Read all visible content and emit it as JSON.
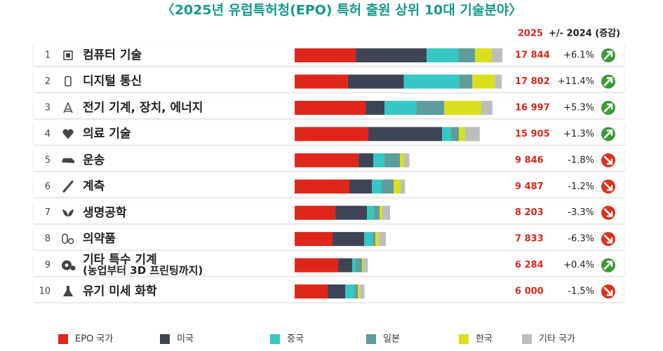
{
  "chart_data": {
    "type": "stacked-bar-table",
    "title": "〈2025년 유럽특허청(EPO) 특허 출원 상위 10대 기술분야〉",
    "header_year": "2025",
    "header_change": "+/- 2024 (증감)",
    "ranks": [
      1,
      2,
      3,
      4,
      5,
      6,
      7,
      8,
      9,
      10
    ],
    "categories": [
      "컴퓨터 기술",
      "디지털 통신",
      "전기 기계, 장치, 에너지",
      "의료 기술",
      "운송",
      "계측",
      "생명공학",
      "의약품",
      "기타 특수 기계\n(농업부터 3D 프린팅까지)",
      "유기 미세 화학"
    ],
    "totals": [
      17844,
      17802,
      16997,
      15905,
      9846,
      9487,
      8203,
      7833,
      6284,
      6000
    ],
    "total_labels": [
      "17 844",
      "17 802",
      "16 997",
      "15 905",
      "9 846",
      "9 487",
      "8 203",
      "7 833",
      "6 284",
      "6 000"
    ],
    "changes": [
      6.1,
      11.4,
      5.3,
      1.3,
      -1.8,
      -1.2,
      -3.3,
      -6.3,
      0.4,
      -1.5
    ],
    "change_labels": [
      "+6.1%",
      "+11.4%",
      "+5.3%",
      "+1.3%",
      "-1.8%",
      "-1.2%",
      "-3.3%",
      "-6.3%",
      "+0.4%",
      "-1.5%"
    ],
    "series": [
      {
        "name": "EPO 국가",
        "color": "#e0261b",
        "values": [
          5250,
          4570,
          6090,
          6330,
          5490,
          4700,
          3500,
          3255,
          3740,
          2835
        ]
      },
      {
        "name": "미국",
        "color": "#3e4453",
        "values": [
          6090,
          4810,
          1630,
          6330,
          1265,
          1930,
          2715,
          2715,
          1205,
          1510
        ]
      },
      {
        "name": "중국",
        "color": "#35c7c1",
        "values": [
          2710,
          4750,
          2770,
          785,
          965,
          845,
          600,
          725,
          300,
          785
        ]
      },
      {
        "name": "일본",
        "color": "#5f9c9c",
        "values": [
          1450,
          1140,
          2350,
          665,
          1325,
          1025,
          480,
          240,
          545,
          300
        ]
      },
      {
        "name": "한국",
        "color": "#d9df1c",
        "values": [
          1440,
          1930,
          3195,
          540,
          360,
          600,
          240,
          300,
          120,
          180
        ]
      },
      {
        "name": "기타 국가",
        "color": "#bdbdbd",
        "values": [
          904,
          602,
          962,
          1255,
          441,
          387,
          668,
          598,
          374,
          390
        ]
      }
    ],
    "up_color": "#3c9a3a",
    "down_color": "#d9321f",
    "total_color": "#d42a1e",
    "title_color": "#16998a"
  }
}
